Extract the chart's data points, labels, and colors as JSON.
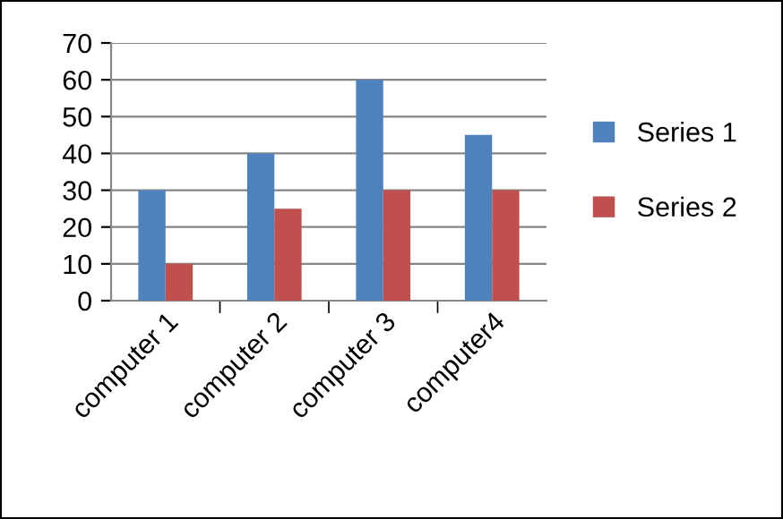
{
  "chart_data": {
    "type": "bar",
    "categories": [
      "computer 1",
      "computer 2",
      "computer 3",
      "computer4"
    ],
    "series": [
      {
        "name": "Series 1",
        "color": "#4f81bd",
        "values": [
          30,
          40,
          60,
          45
        ]
      },
      {
        "name": "Series 2",
        "color": "#c0504d",
        "values": [
          10,
          25,
          30,
          30
        ]
      }
    ],
    "ylim": [
      0,
      70
    ],
    "yticks": [
      0,
      10,
      20,
      30,
      40,
      50,
      60,
      70
    ],
    "grid": "y",
    "legend": "right"
  }
}
